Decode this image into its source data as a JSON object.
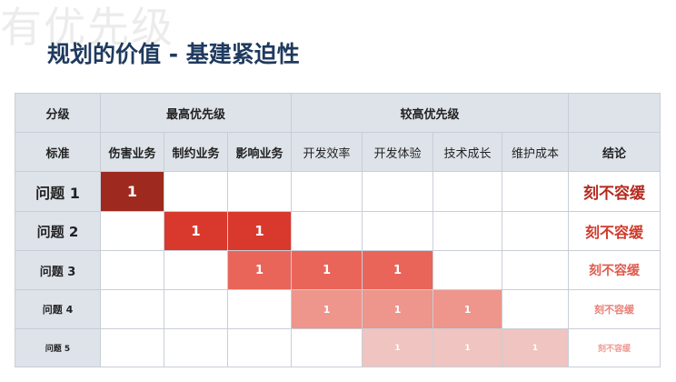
{
  "watermark": "有优先级",
  "title": "规划的价值 - 基建紧迫性",
  "table": {
    "header_row1": {
      "col0": "分级",
      "group1": "最高优先级",
      "group2": "较高优先级",
      "last": ""
    },
    "header_row2": [
      "标准",
      "伤害业务",
      "制约业务",
      "影响业务",
      "开发效率",
      "开发体验",
      "技术成长",
      "维护成本",
      "结论"
    ],
    "rows": [
      {
        "label": "问题 1",
        "cells": [
          "1",
          "",
          "",
          "",
          "",
          "",
          ""
        ],
        "conclusion": "刻不容缓"
      },
      {
        "label": "问题 2",
        "cells": [
          "",
          "1",
          "1",
          "",
          "",
          "",
          ""
        ],
        "conclusion": "刻不容缓"
      },
      {
        "label": "问题 3",
        "cells": [
          "",
          "",
          "1",
          "1",
          "1",
          "",
          ""
        ],
        "conclusion": "刻不容缓"
      },
      {
        "label": "问题 4",
        "cells": [
          "",
          "",
          "",
          "1",
          "1",
          "1",
          ""
        ],
        "conclusion": "刻不容缓"
      },
      {
        "label": "问题 5",
        "cells": [
          "",
          "",
          "",
          "",
          "1",
          "1",
          "1"
        ],
        "conclusion": "刻不容缓"
      }
    ],
    "colors": {
      "row1": "#9e2a1f",
      "row2": "#d8392c",
      "row3": "#e9655a",
      "row4": "#ee958c",
      "row5": "#efc4c1",
      "concl1": "#b42a1e",
      "concl2": "#cf3a2c",
      "concl3": "#df5a4d",
      "concl4": "#e98178",
      "concl5": "#ee9b93"
    }
  }
}
